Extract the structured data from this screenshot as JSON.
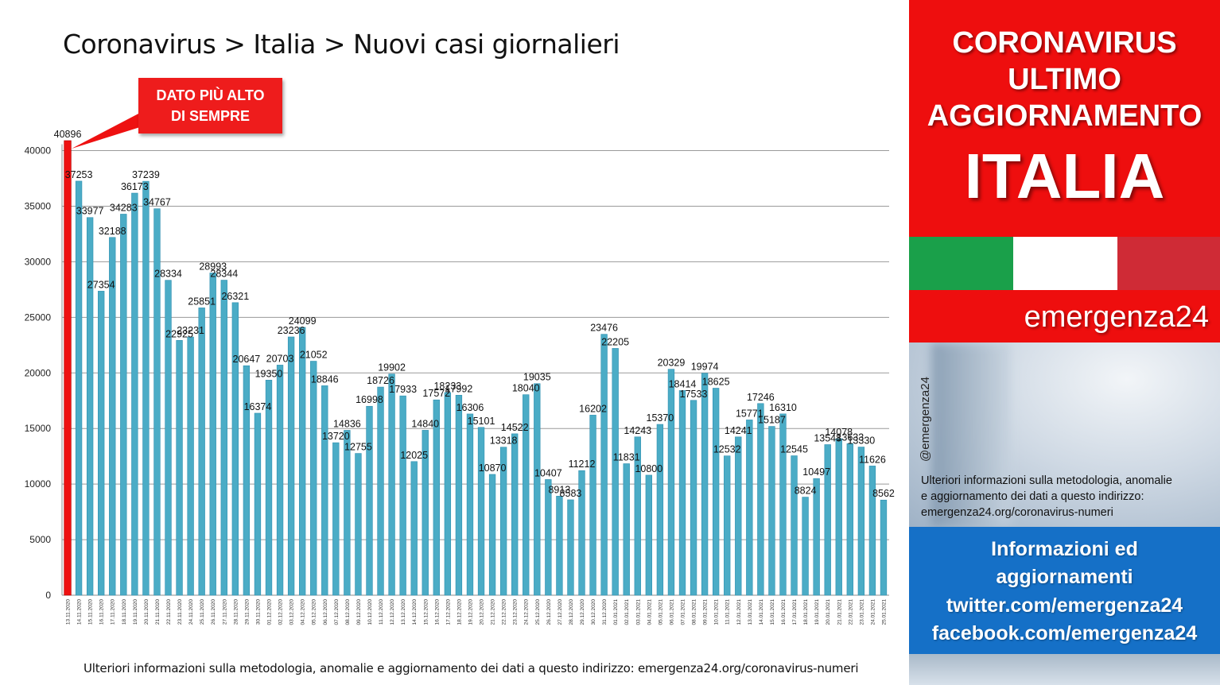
{
  "title": "Coronavirus > Italia > Nuovi casi giornalieri",
  "callout": {
    "line1": "DATO PIÙ ALTO",
    "line2": "DI SEMPRE"
  },
  "footnote": "Ulteriori informazioni sulla metodologia, anomalie e aggiornamento dei dati a questo indirizzo: emergenza24.org/coronavirus-numeri",
  "side": {
    "line1": "CORONAVIRUS",
    "line2": "ULTIMO",
    "line3": "AGGIORNAMENTO",
    "big": "ITALIA",
    "brand": "emergenza24",
    "handle": "@emergenza24",
    "info_lines": [
      "Ulteriori informazioni sulla metodologia, anomalie",
      "e aggiornamento dei dati a questo indirizzo:",
      "emergenza24.org/coronavirus-numeri"
    ],
    "links": [
      "Informazioni ed",
      "aggiornamenti",
      "twitter.com/emergenza24",
      "facebook.com/emergenza24"
    ],
    "flag_colors": [
      "#1aa04a",
      "#ffffff",
      "#cf2b36"
    ],
    "banner_color": "#ee0e0e",
    "blue_color": "#1570c7"
  },
  "chart_data": {
    "type": "bar",
    "title": "Coronavirus > Italia > Nuovi casi giornalieri",
    "ylim": [
      0,
      40000
    ],
    "yticks": [
      0,
      5000,
      10000,
      15000,
      20000,
      25000,
      30000,
      35000,
      40000
    ],
    "grid": true,
    "highlight_index": 0,
    "bar_color": "#4bacc6",
    "highlight_color": "#ee1111",
    "categories": [
      "13.11.2020",
      "14.11.2020",
      "15.11.2020",
      "16.11.2020",
      "17.11.2020",
      "18.11.2020",
      "19.11.2020",
      "20.11.2020",
      "21.11.2020",
      "22.11.2020",
      "23.11.2020",
      "24.11.2020",
      "25.11.2020",
      "26.11.2020",
      "27.11.2020",
      "28.11.2020",
      "29.11.2020",
      "30.11.2020",
      "01.12.2020",
      "02.12.2020",
      "03.12.2020",
      "04.12.2020",
      "05.12.2020",
      "06.12.2020",
      "07.12.2020",
      "08.12.2020",
      "09.12.2020",
      "10.12.2020",
      "11.12.2020",
      "12.12.2020",
      "13.12.2020",
      "14.12.2020",
      "15.12.2020",
      "16.12.2020",
      "17.12.2020",
      "18.12.2020",
      "19.12.2020",
      "20.12.2020",
      "21.12.2020",
      "22.12.2020",
      "23.12.2020",
      "24.12.2020",
      "25.12.2020",
      "26.12.2020",
      "27.12.2020",
      "28.12.2020",
      "29.12.2020",
      "30.12.2020",
      "31.12.2020",
      "01.01.2021",
      "02.01.2021",
      "03.01.2021",
      "04.01.2021",
      "05.01.2021",
      "06.01.2021",
      "07.01.2021",
      "08.01.2021",
      "09.01.2021",
      "10.01.2021",
      "11.01.2021",
      "12.01.2021",
      "13.01.2021",
      "14.01.2021",
      "15.01.2021",
      "16.01.2021",
      "17.01.2021",
      "18.01.2021",
      "19.01.2021",
      "20.01.2021",
      "21.01.2021",
      "22.01.2021",
      "23.01.2021",
      "24.01.2021",
      "25.01.2021"
    ],
    "values": [
      40896,
      37253,
      33977,
      27354,
      32188,
      34283,
      36173,
      37239,
      34767,
      28334,
      22925,
      23231,
      25851,
      28993,
      28344,
      26321,
      20647,
      16374,
      19350,
      20703,
      23236,
      24099,
      21052,
      18846,
      13720,
      14836,
      12755,
      16998,
      18726,
      19902,
      17933,
      12025,
      14840,
      17572,
      18233,
      17992,
      16306,
      15101,
      10870,
      13318,
      14522,
      18040,
      19035,
      10407,
      8913,
      8583,
      11212,
      16202,
      23476,
      22205,
      11831,
      14243,
      10800,
      15370,
      20329,
      18414,
      17533,
      19974,
      18625,
      12532,
      14241,
      15771,
      17246,
      15187,
      16310,
      12545,
      8824,
      10497,
      13548,
      14078,
      13633,
      13330,
      11626,
      8562
    ]
  }
}
